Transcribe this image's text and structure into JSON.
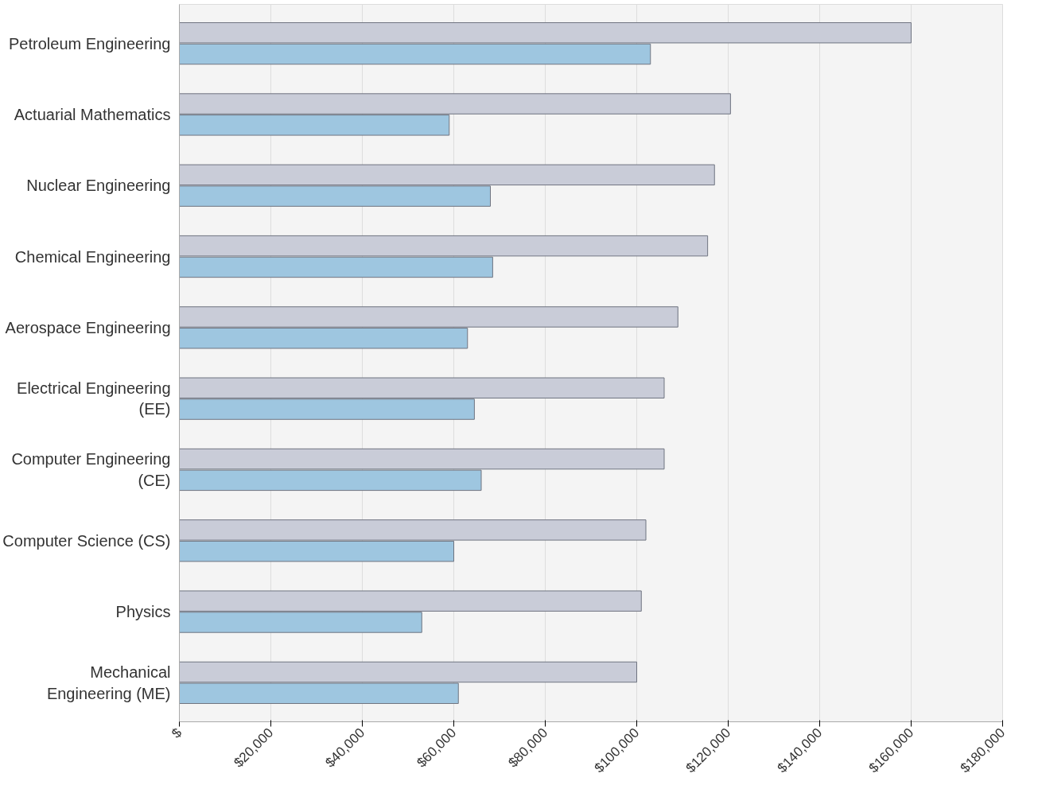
{
  "chart_data": {
    "type": "bar",
    "orientation": "horizontal",
    "categories": [
      "Petroleum Engineering",
      "Actuarial Mathematics",
      "Nuclear Engineering",
      "Chemical Engineering",
      "Aerospace Engineering",
      "Electrical Engineering\n(EE)",
      "Computer Engineering\n(CE)",
      "Computer Science (CS)",
      "Physics",
      "Mechanical\nEngineering (ME)"
    ],
    "series": [
      {
        "color": "#c9ccd8",
        "values": [
          160000,
          120500,
          117000,
          115500,
          109000,
          106000,
          106000,
          102000,
          101000,
          100000
        ]
      },
      {
        "color": "#9ec6e0",
        "values": [
          103000,
          59000,
          68000,
          68500,
          63000,
          64500,
          66000,
          60000,
          53000,
          61000
        ]
      }
    ],
    "xlim": [
      0,
      180000
    ],
    "xticks": [
      {
        "value": 0,
        "label": "$"
      },
      {
        "value": 20000,
        "label": "$20,000"
      },
      {
        "value": 40000,
        "label": "$40,000"
      },
      {
        "value": 60000,
        "label": "$60,000"
      },
      {
        "value": 80000,
        "label": "$80,000"
      },
      {
        "value": 100000,
        "label": "$100,000"
      },
      {
        "value": 120000,
        "label": "$120,000"
      },
      {
        "value": 140000,
        "label": "$140,000"
      },
      {
        "value": 160000,
        "label": "$160,000"
      },
      {
        "value": 180000,
        "label": "$180,000"
      }
    ],
    "grid": "x"
  }
}
